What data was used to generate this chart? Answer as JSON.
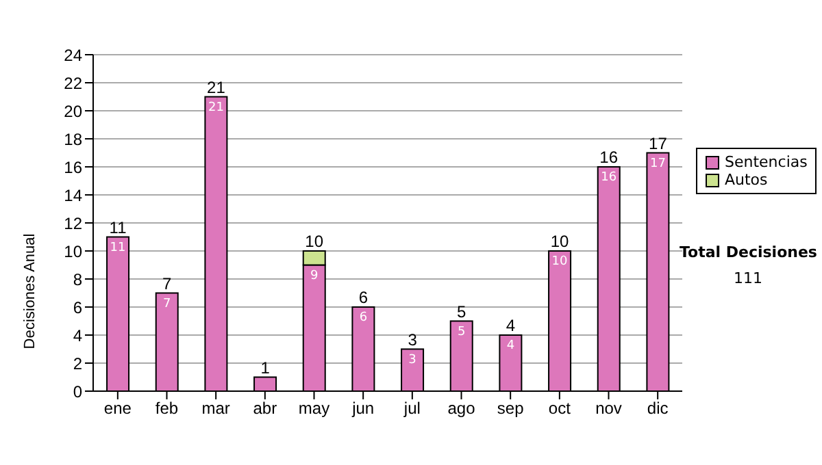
{
  "chart_data": {
    "type": "bar",
    "stacked": true,
    "ylabel": "Decisiones Anual",
    "categories": [
      "ene",
      "feb",
      "mar",
      "abr",
      "may",
      "jun",
      "jul",
      "ago",
      "sep",
      "oct",
      "nov",
      "dic"
    ],
    "series": [
      {
        "name": "Sentencias",
        "color": "#dd77bb",
        "values": [
          11,
          7,
          21,
          1,
          9,
          6,
          3,
          5,
          4,
          10,
          16,
          17
        ],
        "value_labels": [
          "11",
          "7",
          "21",
          null,
          "9",
          "6",
          "3",
          "5",
          "4",
          "10",
          "16",
          "17"
        ]
      },
      {
        "name": "Autos",
        "color": "#cce38f",
        "values": [
          0,
          0,
          0,
          0,
          1,
          0,
          0,
          0,
          0,
          0,
          0,
          0
        ]
      }
    ],
    "totals": [
      "11",
      "7",
      "21",
      "1",
      "10",
      "6",
      "3",
      "5",
      "4",
      "10",
      "16",
      "17"
    ],
    "ylim": [
      0,
      24
    ],
    "yticks": [
      0,
      2,
      4,
      6,
      8,
      10,
      12,
      14,
      16,
      18,
      20,
      22,
      24
    ],
    "grid": "y",
    "legend": "right",
    "annotations": [
      "Total Decisiones",
      "111"
    ]
  }
}
